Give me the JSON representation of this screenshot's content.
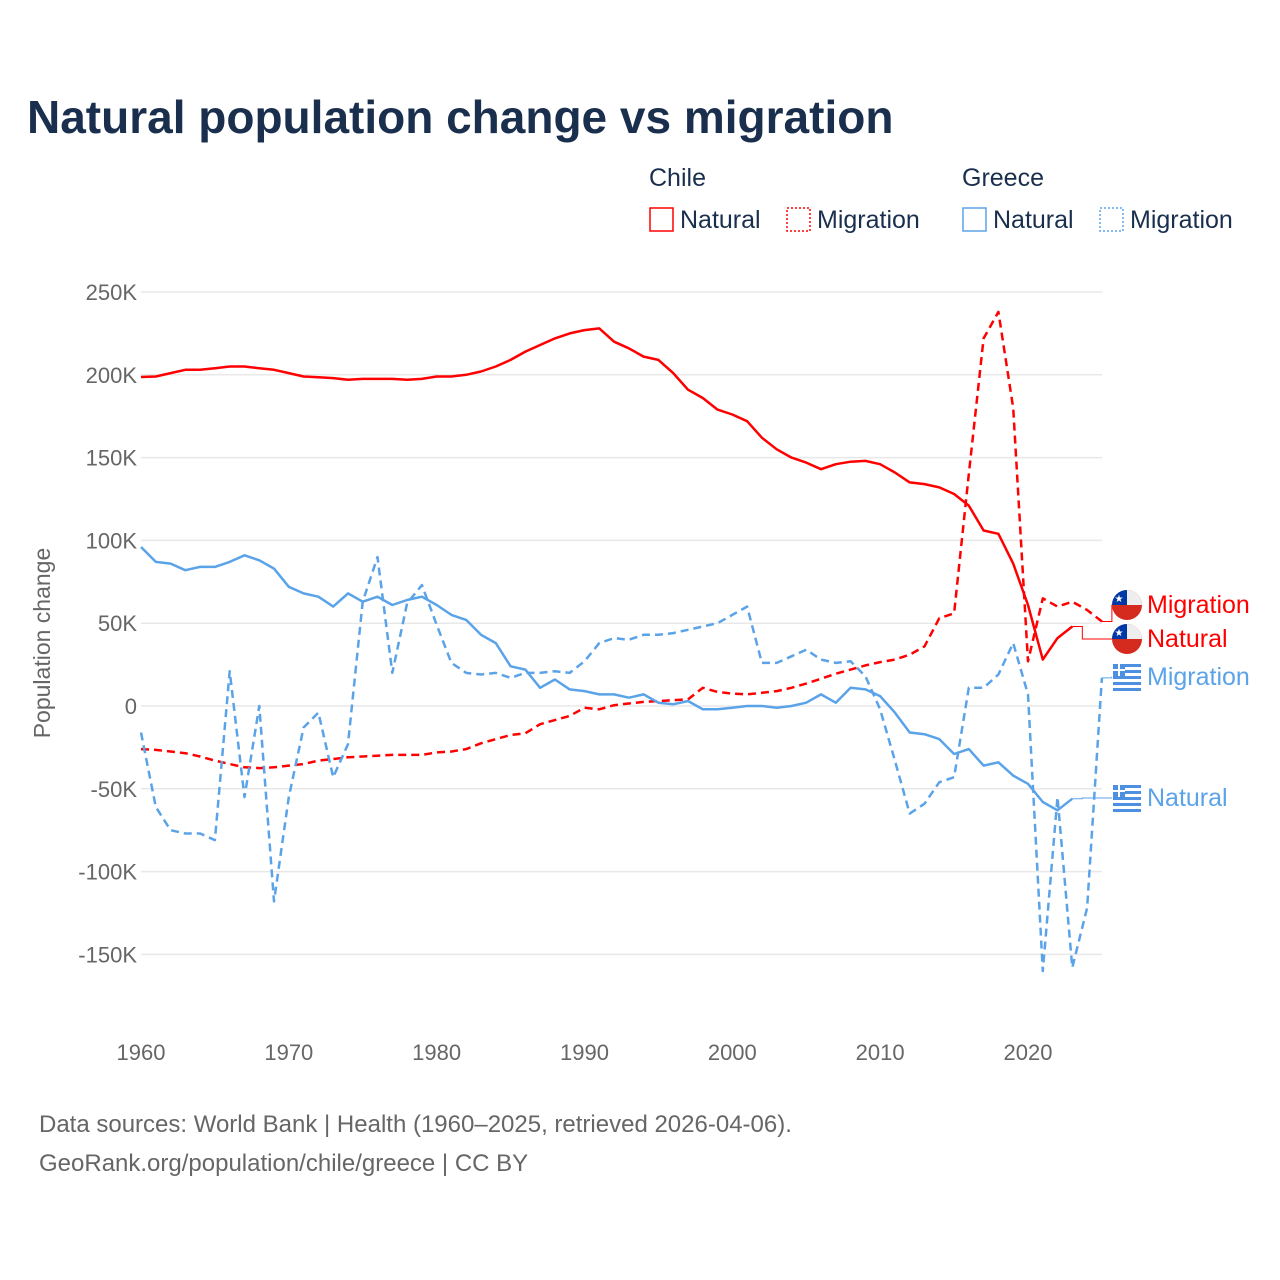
{
  "chart_data": {
    "type": "line",
    "title": "Natural population change vs migration",
    "xlabel": "",
    "ylabel": "Population change",
    "xlim": [
      1960,
      2025
    ],
    "ylim": [
      -175000,
      250000
    ],
    "x_ticks": [
      "1960",
      "1970",
      "1980",
      "1990",
      "2000",
      "2010",
      "2020"
    ],
    "y_ticks": [
      {
        "v": 250000,
        "label": "250K"
      },
      {
        "v": 200000,
        "label": "200K"
      },
      {
        "v": 150000,
        "label": "150K"
      },
      {
        "v": 100000,
        "label": "100K"
      },
      {
        "v": 50000,
        "label": "50K"
      },
      {
        "v": 0,
        "label": "0"
      },
      {
        "v": -50000,
        "label": "-50K"
      },
      {
        "v": -100000,
        "label": "-100K"
      },
      {
        "v": -150000,
        "label": "-150K"
      }
    ],
    "grid": true,
    "legend": {
      "placement": "top-right",
      "groups": [
        {
          "country": "Chile",
          "items": [
            "Natural",
            "Migration"
          ]
        },
        {
          "country": "Greece",
          "items": [
            "Natural",
            "Migration"
          ]
        }
      ]
    },
    "series": [
      {
        "name": "Chile Natural",
        "label": "Natural",
        "country": "Chile",
        "color": "#ff0000",
        "dash": false,
        "start": 1960,
        "values": [
          198.7,
          199,
          201,
          203,
          203,
          204,
          205,
          205,
          204,
          203,
          201,
          199,
          198.5,
          198,
          197,
          197.5,
          197.5,
          197.5,
          197,
          197.5,
          199,
          199,
          200,
          202,
          205,
          209,
          214,
          218,
          222,
          225,
          227,
          228,
          220,
          216,
          211,
          209,
          201,
          191,
          186,
          179,
          176,
          172,
          162,
          155,
          150,
          147,
          143,
          146,
          147.5,
          148,
          146,
          141,
          135,
          134,
          132,
          128,
          121,
          106,
          104,
          86,
          61,
          28,
          41,
          48
        ]
      },
      {
        "name": "Chile Migration",
        "label": "Migration",
        "country": "Chile",
        "color": "#ff0000",
        "dash": true,
        "start": 1960,
        "values": [
          -26,
          -26.5,
          -27.5,
          -28.5,
          -30.5,
          -33,
          -35,
          -37,
          -37.5,
          -37,
          -36,
          -35,
          -33,
          -32,
          -31,
          -30.5,
          -30,
          -29.5,
          -29.5,
          -29.5,
          -28,
          -27.5,
          -26,
          -22.5,
          -20,
          -17.5,
          -16.5,
          -11,
          -8.5,
          -6,
          -1,
          -2,
          0.5,
          1.5,
          2.5,
          3,
          3.5,
          4,
          11,
          8.5,
          7.5,
          7,
          8,
          9,
          11,
          13.5,
          16.5,
          19.5,
          22,
          24.5,
          26.5,
          28,
          31,
          36,
          53,
          56,
          140,
          222,
          238,
          180,
          27,
          65,
          60,
          63,
          58,
          51
        ]
      },
      {
        "name": "Greece Natural",
        "label": "Natural",
        "country": "Greece",
        "color": "#5ba3e8",
        "dash": false,
        "start": 1960,
        "values": [
          96,
          87,
          86,
          82,
          84,
          84,
          87,
          91,
          88,
          83,
          72,
          68,
          66,
          60,
          68,
          63,
          66,
          61,
          64,
          66,
          61,
          55,
          52,
          43,
          38,
          24,
          22,
          11,
          16,
          10,
          9,
          7,
          7,
          5,
          7,
          2,
          1,
          3,
          -2,
          -2,
          -1,
          0,
          0,
          -1,
          0,
          2,
          7,
          2,
          11,
          10,
          6,
          -4,
          -16,
          -17,
          -20,
          -29,
          -26,
          -36,
          -34,
          -42,
          -47,
          -58,
          -63,
          -56
        ]
      },
      {
        "name": "Greece Migration",
        "label": "Migration",
        "country": "Greece",
        "color": "#5ba3e8",
        "dash": true,
        "start": 1960,
        "values": [
          -16,
          -61,
          -75,
          -77,
          -77,
          -81,
          21,
          -55,
          0,
          -118,
          -55,
          -13,
          -4,
          -43,
          -23,
          63,
          90,
          20,
          62,
          73,
          49,
          26,
          20,
          19,
          20,
          17,
          20,
          20,
          21,
          20,
          27,
          38,
          41,
          40,
          43,
          43,
          44,
          46,
          48,
          50,
          55,
          60,
          26,
          26,
          30,
          34,
          28,
          26,
          27,
          18,
          -2,
          -33,
          -65,
          -59,
          -46,
          -43,
          11,
          11,
          19,
          38,
          7,
          -160,
          -55,
          -158,
          -122,
          17
        ]
      }
    ],
    "value_unit": "thousands"
  },
  "footer": {
    "line1": "Data sources: World Bank | Health (1960–2025, retrieved 2026-04-06).",
    "line2": "GeoRank.org/population/chile/greece | CC BY"
  }
}
